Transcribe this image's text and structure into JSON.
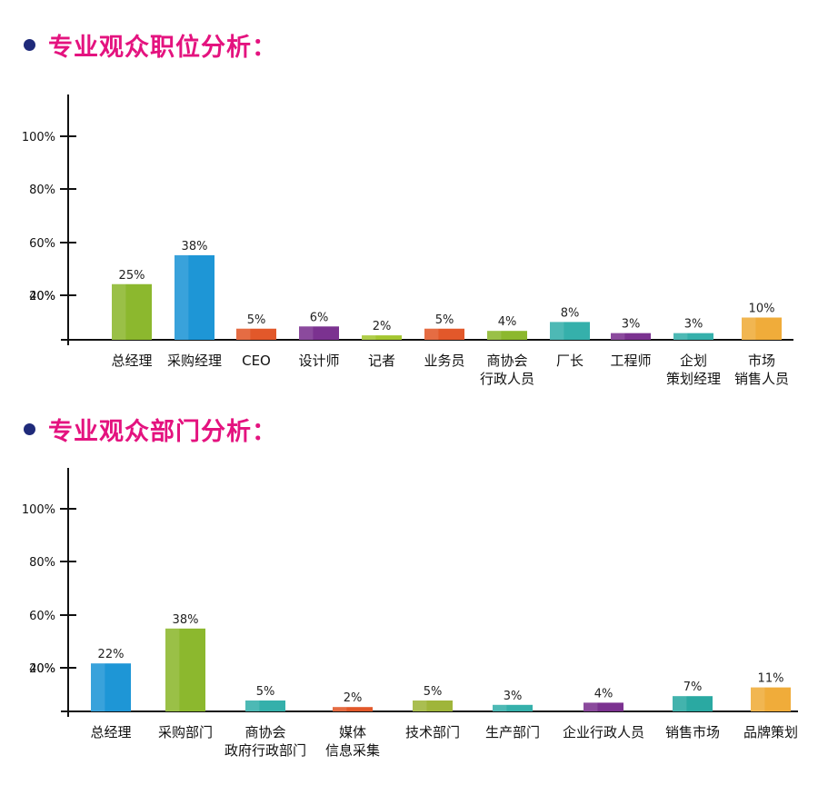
{
  "colors": {
    "heading": "#e4137f",
    "bullet": "#1f2a7a",
    "axis": "#111111"
  },
  "chart_data": [
    {
      "type": "bar",
      "title": "专业观众职位分析：",
      "yticks": [
        "100%",
        "80%",
        "60%",
        "40%",
        "20%"
      ],
      "ylim": [
        0,
        100
      ],
      "categories": [
        [
          "总经理"
        ],
        [
          "采购经理"
        ],
        [
          "CEO"
        ],
        [
          "设计师"
        ],
        [
          "记者"
        ],
        [
          "业务员"
        ],
        [
          "商协会",
          "行政人员"
        ],
        [
          "厂长"
        ],
        [
          "工程师"
        ],
        [
          "企划",
          "策划经理"
        ],
        [
          "市场",
          "销售人员"
        ]
      ],
      "values": [
        25,
        38,
        5,
        6,
        2,
        5,
        4,
        8,
        3,
        3,
        10
      ],
      "value_labels": [
        "25%",
        "38%",
        "5%",
        "6%",
        "2%",
        "5%",
        "4%",
        "8%",
        "3%",
        "3%",
        "10%"
      ],
      "bar_colors": [
        "#8cb82e",
        "#1e96d6",
        "#e2582a",
        "#7b3290",
        "#a4c630",
        "#e2582a",
        "#8cb82e",
        "#35b0ab",
        "#7b3290",
        "#35b0ab",
        "#f0ac3a"
      ]
    },
    {
      "type": "bar",
      "title": "专业观众部门分析：",
      "yticks": [
        "100%",
        "80%",
        "60%",
        "40%",
        "20%"
      ],
      "ylim": [
        0,
        100
      ],
      "categories": [
        [
          "总经理"
        ],
        [
          "采购部门"
        ],
        [
          "商协会",
          "政府行政部门"
        ],
        [
          "媒体",
          "信息采集"
        ],
        [
          "技术部门"
        ],
        [
          "生产部门"
        ],
        [
          "企业行政人员"
        ],
        [
          "销售市场"
        ],
        [
          "品牌策划"
        ]
      ],
      "values": [
        22,
        38,
        5,
        2,
        5,
        3,
        4,
        7,
        11
      ],
      "value_labels": [
        "22%",
        "38%",
        "5%",
        "2%",
        "5%",
        "3%",
        "4%",
        "7%",
        "11%"
      ],
      "bar_colors": [
        "#1e96d6",
        "#8cb82e",
        "#35b0ab",
        "#e2582a",
        "#9fb53a",
        "#35b0ab",
        "#7b3290",
        "#2aa9a2",
        "#f0ac3a"
      ]
    }
  ]
}
